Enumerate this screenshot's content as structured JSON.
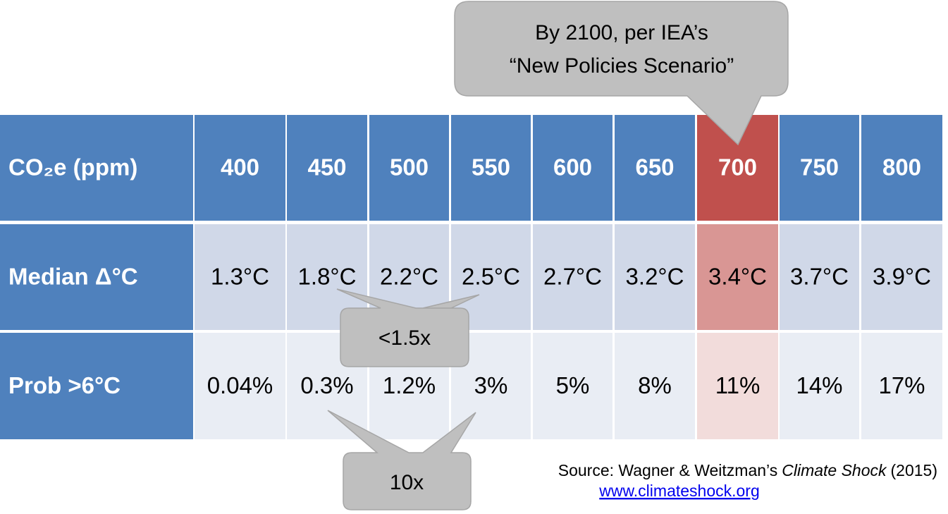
{
  "table": {
    "header": [
      "CO₂e (ppm)",
      "400",
      "450",
      "500",
      "550",
      "600",
      "650",
      "700",
      "750",
      "800"
    ],
    "rows": [
      [
        "Median Δ°C",
        "1.3°C",
        "1.8°C",
        "2.2°C",
        "2.5°C",
        "2.7°C",
        "3.2°C",
        "3.4°C",
        "3.7°C",
        "3.9°C"
      ],
      [
        "Prob >6°C",
        "0.04%",
        "0.3%",
        "1.2%",
        "3%",
        "5%",
        "8%",
        "11%",
        "14%",
        "17%"
      ]
    ]
  },
  "callouts": [
    {
      "lines": [
        "By 2100, per IEA’s",
        "“New Policies Scenario”"
      ]
    },
    {
      "text": "<1.5x"
    },
    {
      "text": "10x"
    }
  ],
  "source": {
    "prefix": "Source: Wagner & Weitzman’s",
    "title": "Climate Shock",
    "year": "(2015)",
    "url": "www.climateshock.org"
  }
}
